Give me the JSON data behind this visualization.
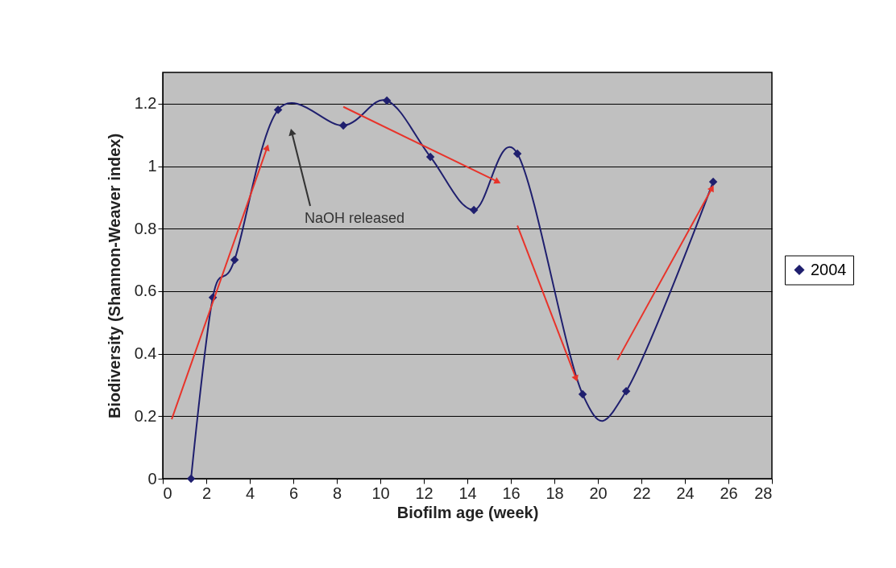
{
  "chart_data": {
    "type": "line",
    "xlabel": "Biofilm age (week)",
    "ylabel": "Biodiversity (Shannon-Weaver index)",
    "x": [
      1.3,
      2.3,
      3.3,
      5.3,
      8.3,
      10.3,
      12.3,
      14.3,
      16.3,
      19.3,
      21.3,
      25.3
    ],
    "series": [
      {
        "name": "2004",
        "color": "#1f1f6e",
        "values": [
          0,
          0.58,
          0.7,
          1.18,
          1.13,
          1.21,
          1.03,
          0.86,
          1.04,
          0.27,
          0.28,
          0.95
        ]
      }
    ],
    "xlim": [
      0,
      28
    ],
    "xticks": [
      0,
      2,
      4,
      6,
      8,
      10,
      12,
      14,
      16,
      18,
      20,
      22,
      24,
      26,
      28
    ],
    "ylim": [
      0,
      1.3
    ],
    "yticks": [
      0,
      0.2,
      0.4,
      0.6,
      0.8,
      1,
      1.2
    ],
    "grid": "y",
    "legend": "right",
    "marker": "diamond",
    "line_style": "solid",
    "annotations": [
      "NaOH released"
    ]
  }
}
